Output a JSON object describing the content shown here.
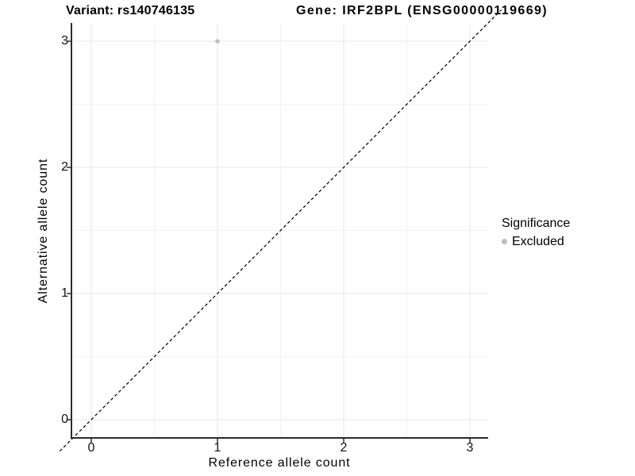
{
  "header": {
    "variant_title": "Variant: rs140746135",
    "gene_title": "Gene: IRF2BPL (ENSG00000119669)"
  },
  "legend": {
    "title": "Significance",
    "items": [
      {
        "label": "Excluded",
        "color": "#bebebe"
      }
    ]
  },
  "colors": {
    "point": "#bebebe",
    "grid_major": "#e6e6e6",
    "grid_minor": "#f2f2f2",
    "axis_line": "#2b2b2b",
    "reference_line": "#000000",
    "background": "#ffffff"
  },
  "chart_data": {
    "type": "scatter",
    "title_left": "Variant: rs140746135",
    "title_right": "Gene: IRF2BPL (ENSG00000119669)",
    "xlabel": "Reference allele count",
    "ylabel": "Alternative allele count",
    "xlim": [
      -0.15,
      3.15
    ],
    "ylim": [
      -0.15,
      3.15
    ],
    "x_ticks": [
      0,
      1,
      2,
      3
    ],
    "y_ticks": [
      0,
      1,
      2,
      3
    ],
    "minor_ticks": [
      0.5,
      1.5,
      2.5
    ],
    "grid": true,
    "legend_position": "right",
    "legend_title": "Significance",
    "series": [
      {
        "name": "Excluded",
        "color": "#bebebe",
        "point_radius_px": 2.8,
        "points": [
          {
            "x": 1,
            "y": 3
          }
        ]
      }
    ],
    "reference_line": {
      "type": "identity",
      "slope": 1,
      "intercept": 0,
      "style": "dashed",
      "color": "#000000"
    }
  }
}
